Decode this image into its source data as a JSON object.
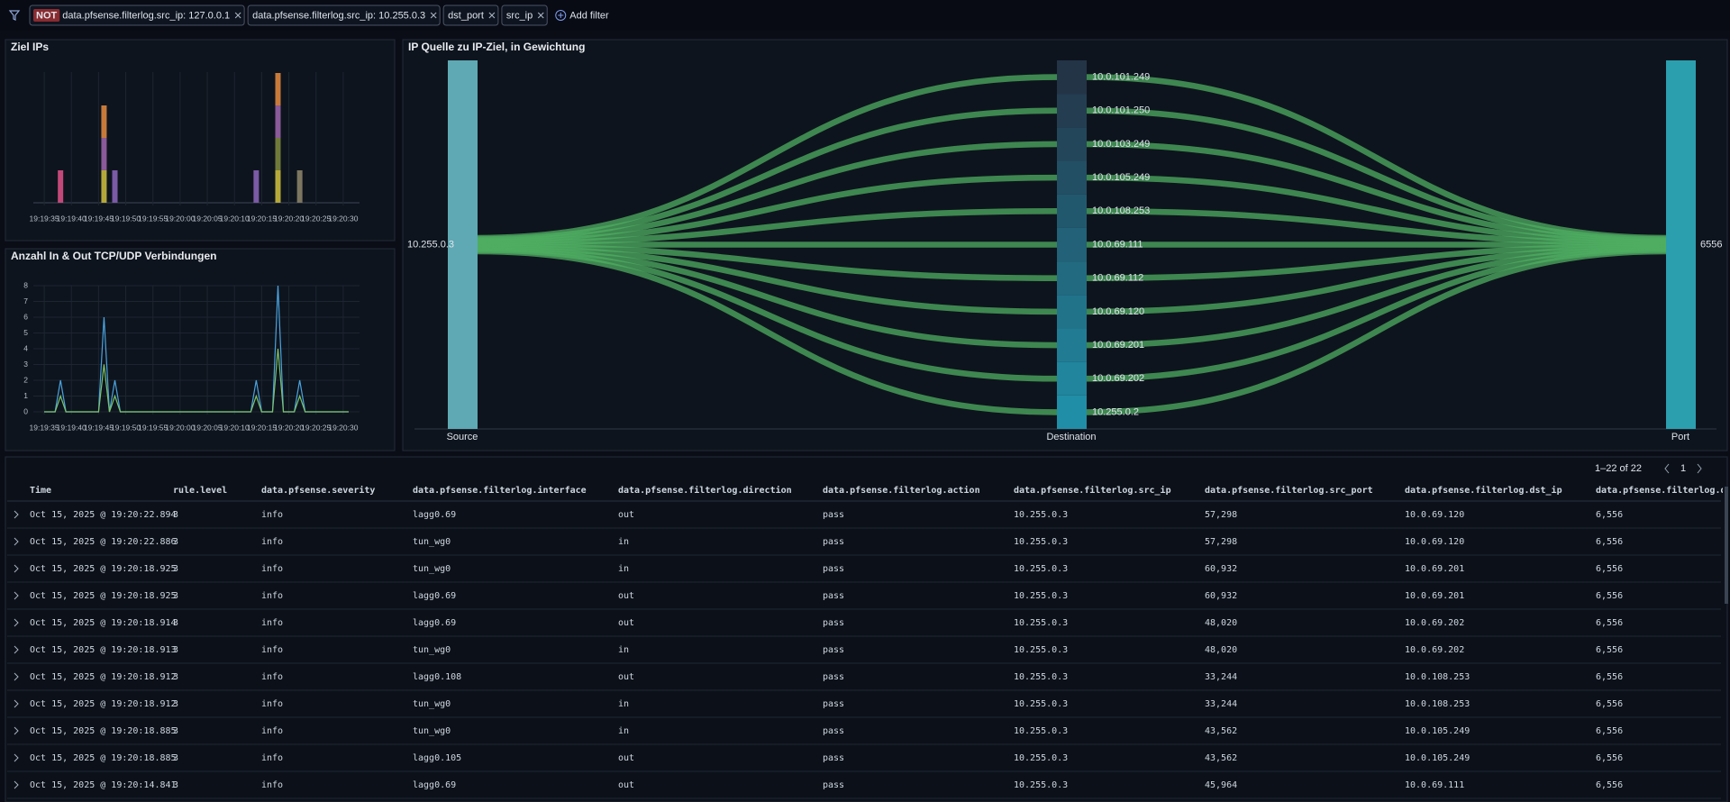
{
  "filters": [
    {
      "prefix": "NOT",
      "label": "data.pfsense.filterlog.src_ip: 127.0.0.1"
    },
    {
      "label": "data.pfsense.filterlog.src_ip: 10.255.0.3"
    },
    {
      "label": "dst_port"
    },
    {
      "label": "src_ip"
    }
  ],
  "add_filter": "Add filter",
  "ziel_ips": {
    "type": "bar",
    "title": "Ziel IPs",
    "xlim": [
      "19:19:33",
      "19:20:33"
    ],
    "xticks": [
      "19:19:35",
      "19:19:40",
      "19:19:45",
      "19:19:50",
      "19:19:55",
      "19:20:00",
      "19:20:05",
      "19:20:10",
      "19:20:15",
      "19:20:20",
      "19:20:25",
      "19:20:30"
    ],
    "bars": [
      {
        "x": "19:19:38",
        "segments": [
          {
            "value": 2,
            "color": "#c2487a"
          }
        ]
      },
      {
        "x": "19:19:46",
        "segments": [
          {
            "value": 2,
            "color": "#b5a83a"
          },
          {
            "value": 2,
            "color": "#8a5a9a"
          },
          {
            "value": 2,
            "color": "#c77a3a"
          }
        ]
      },
      {
        "x": "19:19:48",
        "segments": [
          {
            "value": 2,
            "color": "#7b5aa6"
          }
        ]
      },
      {
        "x": "19:20:14",
        "segments": [
          {
            "value": 2,
            "color": "#7b5aa6"
          }
        ]
      },
      {
        "x": "19:20:18",
        "segments": [
          {
            "value": 2,
            "color": "#b5a83a"
          },
          {
            "value": 2,
            "color": "#6f7a3a"
          },
          {
            "value": 2,
            "color": "#8a5a9a"
          },
          {
            "value": 2,
            "color": "#c77a3a"
          }
        ]
      },
      {
        "x": "19:20:22",
        "segments": [
          {
            "value": 2,
            "color": "#7c7560"
          }
        ]
      }
    ]
  },
  "connections": {
    "type": "line",
    "title": "Anzahl In & Out TCP/UDP Verbindungen",
    "xlim": [
      "19:19:33",
      "19:20:33"
    ],
    "xticks": [
      "19:19:35",
      "19:19:40",
      "19:19:45",
      "19:19:50",
      "19:19:55",
      "19:20:00",
      "19:20:05",
      "19:20:10",
      "19:20:15",
      "19:20:20",
      "19:20:25",
      "19:20:30"
    ],
    "ylim": [
      0,
      8
    ],
    "yticks": [
      0,
      1,
      2,
      3,
      4,
      5,
      6,
      7,
      8
    ],
    "grid": true,
    "x": [
      "19:19:35",
      "19:19:37",
      "19:19:38",
      "19:19:39",
      "19:19:45",
      "19:19:46",
      "19:19:47",
      "19:19:48",
      "19:19:49",
      "19:20:13",
      "19:20:14",
      "19:20:15",
      "19:20:17",
      "19:20:18",
      "19:20:19",
      "19:20:21",
      "19:20:22",
      "19:20:23",
      "19:20:31"
    ],
    "series": [
      {
        "color": "#4aa3df",
        "values": [
          0,
          0,
          2,
          0,
          0,
          6,
          0,
          2,
          0,
          0,
          2,
          0,
          0,
          8,
          0,
          0,
          2,
          0,
          0
        ]
      },
      {
        "color": "#7cc26a",
        "values": [
          0,
          0,
          1,
          0,
          0,
          3,
          0,
          1,
          0,
          0,
          1,
          0,
          0,
          4,
          0,
          0,
          1,
          0,
          0
        ]
      }
    ]
  },
  "sankey": {
    "type": "sankey",
    "title": "IP Quelle zu IP-Ziel, in Gewichtung",
    "source": "10.255.0.3",
    "port": "6556",
    "axis_labels": [
      "Source",
      "Destination",
      "Port"
    ],
    "source_color": "#5ea9b3",
    "port_color": "#2b9fae",
    "link_color": "#4fae62",
    "destinations": [
      "10.0.101.249",
      "10.0.101.250",
      "10.0.103.249",
      "10.0.105.249",
      "10.0.108.253",
      "10.0.69.111",
      "10.0.69.112",
      "10.0.69.120",
      "10.0.69.201",
      "10.0.69.202",
      "10.255.0.2"
    ],
    "values": [
      2,
      2,
      2,
      2,
      2,
      2,
      2,
      2,
      2,
      2,
      2
    ]
  },
  "table": {
    "pagination": "1–22 of 22",
    "page": "1",
    "columns": [
      "Time",
      "rule.level",
      "data.pfsense.severity",
      "data.pfsense.filterlog.interface",
      "data.pfsense.filterlog.direction",
      "data.pfsense.filterlog.action",
      "data.pfsense.filterlog.src_ip",
      "data.pfsense.filterlog.src_port",
      "data.pfsense.filterlog.dst_ip",
      "data.pfsense.filterlog.dst_port"
    ],
    "rows": [
      [
        "Oct 15, 2025 @ 19:20:22.894",
        "3",
        "info",
        "lagg0.69",
        "out",
        "pass",
        "10.255.0.3",
        "57,298",
        "10.0.69.120",
        "6,556"
      ],
      [
        "Oct 15, 2025 @ 19:20:22.886",
        "3",
        "info",
        "tun_wg0",
        "in",
        "pass",
        "10.255.0.3",
        "57,298",
        "10.0.69.120",
        "6,556"
      ],
      [
        "Oct 15, 2025 @ 19:20:18.925",
        "3",
        "info",
        "tun_wg0",
        "in",
        "pass",
        "10.255.0.3",
        "60,932",
        "10.0.69.201",
        "6,556"
      ],
      [
        "Oct 15, 2025 @ 19:20:18.925",
        "3",
        "info",
        "lagg0.69",
        "out",
        "pass",
        "10.255.0.3",
        "60,932",
        "10.0.69.201",
        "6,556"
      ],
      [
        "Oct 15, 2025 @ 19:20:18.914",
        "3",
        "info",
        "lagg0.69",
        "out",
        "pass",
        "10.255.0.3",
        "48,020",
        "10.0.69.202",
        "6,556"
      ],
      [
        "Oct 15, 2025 @ 19:20:18.913",
        "3",
        "info",
        "tun_wg0",
        "in",
        "pass",
        "10.255.0.3",
        "48,020",
        "10.0.69.202",
        "6,556"
      ],
      [
        "Oct 15, 2025 @ 19:20:18.912",
        "3",
        "info",
        "lagg0.108",
        "out",
        "pass",
        "10.255.0.3",
        "33,244",
        "10.0.108.253",
        "6,556"
      ],
      [
        "Oct 15, 2025 @ 19:20:18.912",
        "3",
        "info",
        "tun_wg0",
        "in",
        "pass",
        "10.255.0.3",
        "33,244",
        "10.0.108.253",
        "6,556"
      ],
      [
        "Oct 15, 2025 @ 19:20:18.885",
        "3",
        "info",
        "tun_wg0",
        "in",
        "pass",
        "10.255.0.3",
        "43,562",
        "10.0.105.249",
        "6,556"
      ],
      [
        "Oct 15, 2025 @ 19:20:18.885",
        "3",
        "info",
        "lagg0.105",
        "out",
        "pass",
        "10.255.0.3",
        "43,562",
        "10.0.105.249",
        "6,556"
      ],
      [
        "Oct 15, 2025 @ 19:20:14.841",
        "3",
        "info",
        "lagg0.69",
        "out",
        "pass",
        "10.255.0.3",
        "45,964",
        "10.0.69.111",
        "6,556"
      ]
    ]
  }
}
